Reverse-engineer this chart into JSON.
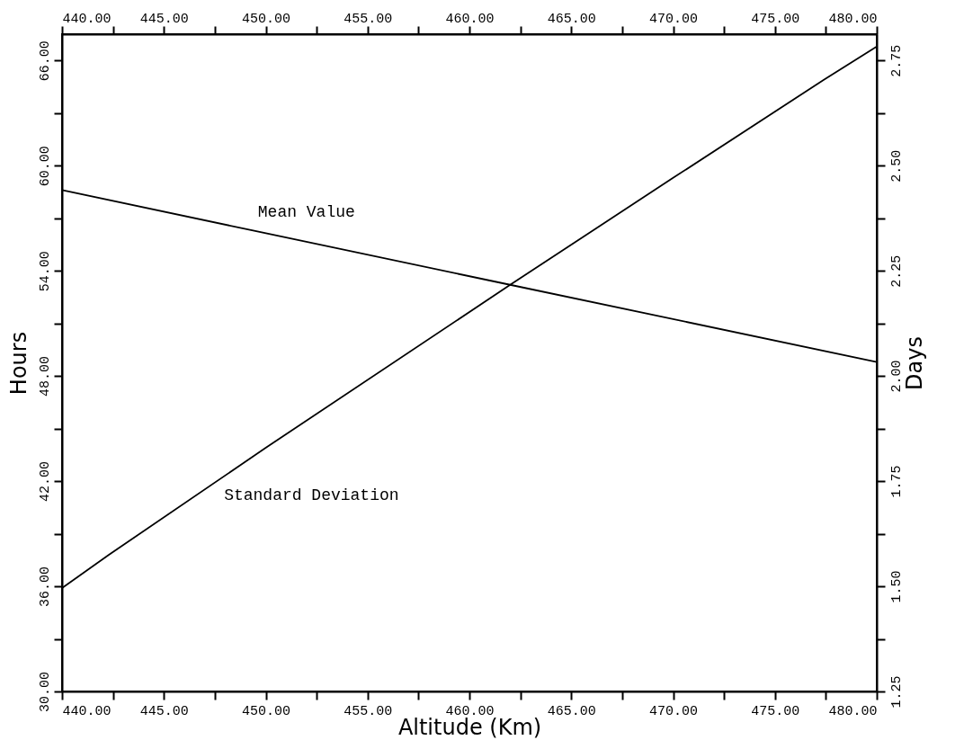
{
  "chart_data": {
    "type": "line",
    "xlabel": "Altitude (Km)",
    "ylabel": "Hours",
    "y2label": "Days",
    "xlim": [
      440,
      480
    ],
    "x2lim": [
      440,
      480
    ],
    "ylim": [
      30,
      67.5
    ],
    "y2lim": [
      1.25,
      2.8125
    ],
    "xticks": [
      {
        "value": 440,
        "label": "440.00"
      },
      {
        "value": 442.5,
        "label": null
      },
      {
        "value": 445,
        "label": "445.00"
      },
      {
        "value": 447.5,
        "label": null
      },
      {
        "value": 450,
        "label": "450.00"
      },
      {
        "value": 452.5,
        "label": null
      },
      {
        "value": 455,
        "label": "455.00"
      },
      {
        "value": 457.5,
        "label": null
      },
      {
        "value": 460,
        "label": "460.00"
      },
      {
        "value": 462.5,
        "label": null
      },
      {
        "value": 465,
        "label": "465.00"
      },
      {
        "value": 467.5,
        "label": null
      },
      {
        "value": 470,
        "label": "470.00"
      },
      {
        "value": 472.5,
        "label": null
      },
      {
        "value": 475,
        "label": "475.00"
      },
      {
        "value": 477.5,
        "label": null
      },
      {
        "value": 480,
        "label": "480.00"
      }
    ],
    "x2ticks": [
      {
        "value": 440,
        "label": "440.00"
      },
      {
        "value": 442.5,
        "label": null
      },
      {
        "value": 445,
        "label": "445.00"
      },
      {
        "value": 447.5,
        "label": null
      },
      {
        "value": 450,
        "label": "450.00"
      },
      {
        "value": 452.5,
        "label": null
      },
      {
        "value": 455,
        "label": "455.00"
      },
      {
        "value": 457.5,
        "label": null
      },
      {
        "value": 460,
        "label": "460.00"
      },
      {
        "value": 462.5,
        "label": null
      },
      {
        "value": 465,
        "label": "465.00"
      },
      {
        "value": 467.5,
        "label": null
      },
      {
        "value": 470,
        "label": "470.00"
      },
      {
        "value": 472.5,
        "label": null
      },
      {
        "value": 475,
        "label": "475.00"
      },
      {
        "value": 477.5,
        "label": null
      },
      {
        "value": 480,
        "label": "480.00"
      }
    ],
    "yticks": [
      {
        "value": 30,
        "label": "30.00"
      },
      {
        "value": 33,
        "label": null
      },
      {
        "value": 36,
        "label": "36.00"
      },
      {
        "value": 39,
        "label": null
      },
      {
        "value": 42,
        "label": "42.00"
      },
      {
        "value": 45,
        "label": null
      },
      {
        "value": 48,
        "label": "48.00"
      },
      {
        "value": 51,
        "label": null
      },
      {
        "value": 54,
        "label": "54.00"
      },
      {
        "value": 57,
        "label": null
      },
      {
        "value": 60,
        "label": "60.00"
      },
      {
        "value": 63,
        "label": null
      },
      {
        "value": 66,
        "label": "66.00"
      }
    ],
    "y2ticks": [
      1.25,
      {
        "value": 1.375,
        "label": null
      },
      {
        "value": 1.5,
        "label": "1.50"
      },
      {
        "value": 1.625,
        "label": null
      },
      1.75,
      {
        "value": 1.875,
        "label": null
      },
      {
        "value": 2,
        "label": "2.00"
      },
      {
        "value": 2.125,
        "label": null
      },
      2.25,
      {
        "value": 2.375,
        "label": null
      },
      {
        "value": 2.5,
        "label": "2.50"
      },
      {
        "value": 2.625,
        "label": null
      },
      2.75
    ],
    "series": [
      {
        "name": "Mean Value",
        "color": "#000000",
        "x": [
          440,
          462,
          480
        ],
        "values": [
          58.6,
          53.2,
          48.8
        ]
      },
      {
        "name": "Standard Deviation",
        "color": "#000000",
        "x": [
          440,
          442.3,
          450,
          462,
          470,
          477.4,
          480
        ],
        "values": [
          35.9,
          37.8,
          43.9,
          53.2,
          59.3,
          64.9,
          66.8
        ]
      }
    ],
    "grid": false,
    "marker": "none",
    "line_style": "solid"
  }
}
